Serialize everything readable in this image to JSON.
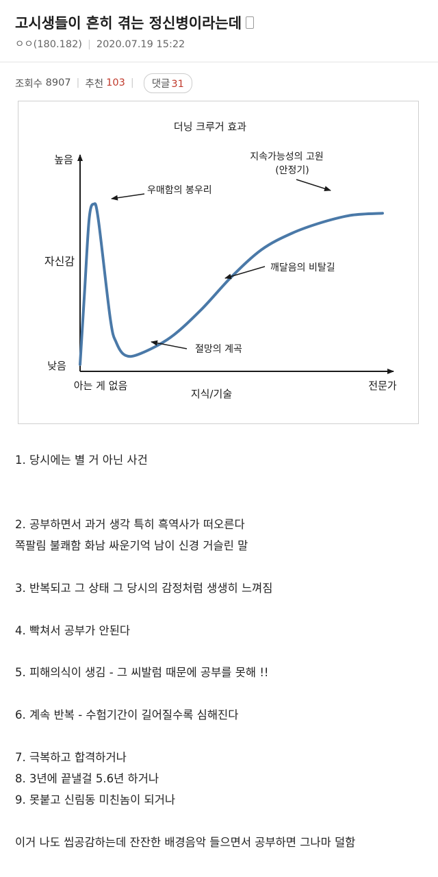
{
  "post": {
    "title": "고시생들이 흔히 겪는 정신병이라는데",
    "author": "ㅇㅇ(180.182)",
    "datetime": "2020.07.19 15:22",
    "views_label": "조회수",
    "views": "8907",
    "recommend_label": "추천",
    "recommend": "103",
    "comments_label": "댓글",
    "comments": "31"
  },
  "chart": {
    "title": "더닝 크루거 효과",
    "y_high": "높음",
    "y_low": "낮음",
    "y_label": "자신감",
    "x_left": "아는 게 없음",
    "x_right": "전문가",
    "x_label": "지식/기술",
    "ann_peak": "우매함의 봉우리",
    "ann_valley": "절망의 계곡",
    "ann_slope": "깨달음의 비탈길",
    "ann_plateau_1": "지속가능성의 고원",
    "ann_plateau_2": "(안정기)",
    "line_color": "#4a79a8"
  },
  "chart_data": {
    "type": "line",
    "title": "더닝 크루거 효과",
    "xlabel": "지식/기술",
    "ylabel": "자신감",
    "x_tick_labels": [
      "아는 게 없음",
      "전문가"
    ],
    "y_tick_labels": [
      "낮음",
      "높음"
    ],
    "annotations": [
      "우매함의 봉우리",
      "절망의 계곡",
      "깨달음의 비탈길",
      "지속가능성의 고원 (안정기)"
    ],
    "x": [
      0,
      1.5,
      3,
      4.5,
      6,
      10,
      12,
      15,
      20,
      30,
      40,
      50,
      60,
      70,
      80,
      90,
      100
    ],
    "values": [
      0,
      40,
      80,
      88,
      80,
      25,
      12,
      5,
      6,
      15,
      30,
      48,
      63,
      72,
      78,
      82,
      83
    ],
    "ylim": [
      0,
      100
    ],
    "xlim": [
      0,
      100
    ]
  },
  "body_lines": [
    "1. 당시에는 별 거 아닌 사건",
    "2. 공부하면서 과거 생각 특히 흑역사가 떠오른다",
    "쪽팔림 불쾌함 화남 싸운기억 남이 신경 거슬린 말",
    "3. 반복되고 그 상태 그 당시의 감정처럼 생생히 느껴짐",
    "4. 빡쳐서 공부가 안된다",
    "5. 피해의식이 생김 - 그 씨발럼 때문에 공부를 못해 !!",
    "6. 계속 반복 - 수험기간이 길어질수록 심해진다",
    "7. 극복하고 합격하거나",
    "8. 3년에 끝낼걸 5.6년 하거나",
    "9. 못붙고 신림동 미친놈이 되거나",
    "이거 나도 씹공감하는데 잔잔한 배경음악 들으면서 공부하면 그나마 덜함"
  ]
}
